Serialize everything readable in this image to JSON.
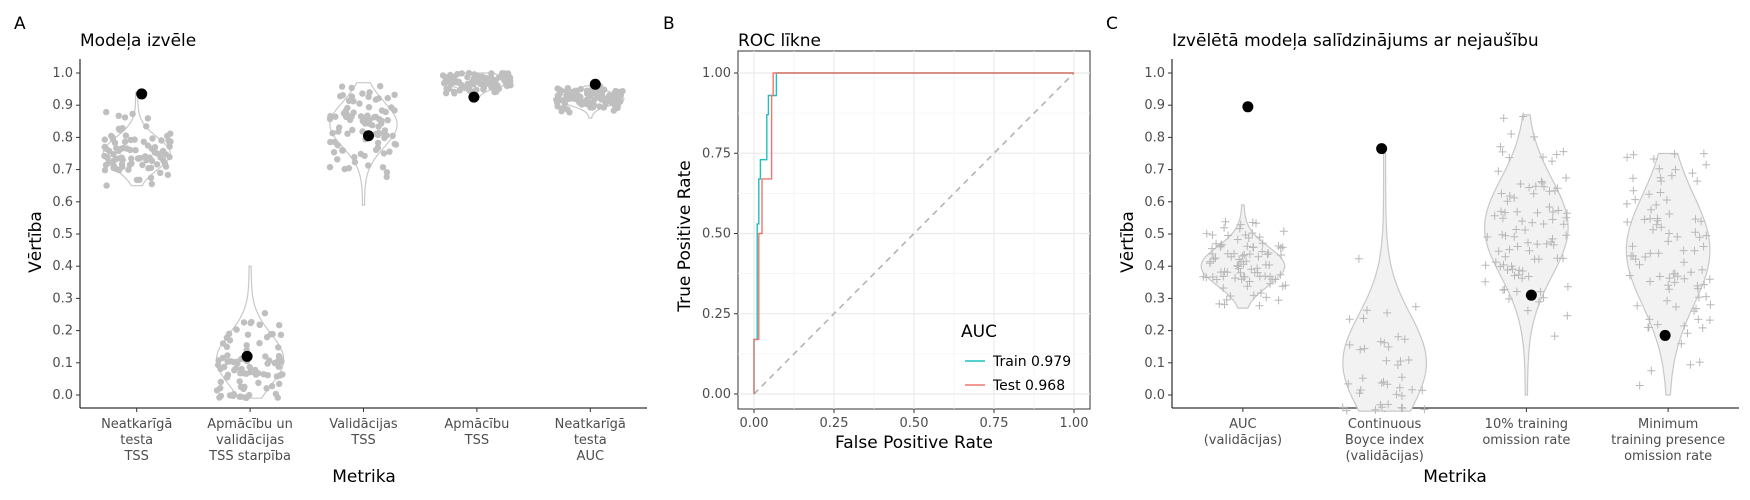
{
  "panels": {
    "A": {
      "tag": "A",
      "title": "Modeļa izvēle",
      "xlabel": "Metrika",
      "ylabel": "Vērtība"
    },
    "B": {
      "tag": "B",
      "title": "ROC līkne",
      "xlabel": "False Positive Rate",
      "ylabel": "True Positive Rate"
    },
    "C": {
      "tag": "C",
      "title": "Izvēlētā modeļa salīdzinājums ar nejaušību",
      "xlabel": "Metrika",
      "ylabel": "Vērtība"
    }
  },
  "colors": {
    "points": "#bfbfbf",
    "selected": "#000000",
    "train": "#1fbfc0",
    "test": "#f0766d",
    "diagonal": "#b3b3b3",
    "grid": "#ebebeb"
  },
  "chart_data": [
    {
      "type": "scatter",
      "title": "Modeļa izvēle",
      "xlabel": "Metrika",
      "ylabel": "Vērtība",
      "ylim": [
        0,
        1
      ],
      "yticks": [
        "0.0",
        "0.1",
        "0.2",
        "0.3",
        "0.4",
        "0.5",
        "0.6",
        "0.7",
        "0.8",
        "0.9",
        "1.0"
      ],
      "categories": [
        [
          "Neatkarīgā",
          "testa",
          "TSS"
        ],
        [
          "Apmācību un",
          "validācijas",
          "TSS starpība"
        ],
        [
          "Validācijas",
          "TSS"
        ],
        [
          "Apmācību",
          "TSS"
        ],
        [
          "Neatkarīgā",
          "testa",
          "AUC"
        ]
      ],
      "distributions": [
        {
          "center": 0.75,
          "spread": 0.05,
          "min": 0.65,
          "max": 0.94,
          "n": 90
        },
        {
          "center": 0.11,
          "spread": 0.08,
          "min": -0.01,
          "max": 0.4,
          "n": 90
        },
        {
          "center": 0.84,
          "spread": 0.07,
          "min": 0.59,
          "max": 0.97,
          "n": 90
        },
        {
          "center": 0.975,
          "spread": 0.02,
          "min": 0.92,
          "max": 1.0,
          "n": 90
        },
        {
          "center": 0.92,
          "spread": 0.02,
          "min": 0.86,
          "max": 0.96,
          "n": 90
        }
      ],
      "selected": [
        0.935,
        0.12,
        0.805,
        0.925,
        0.965
      ]
    },
    {
      "type": "line",
      "title": "ROC līkne",
      "xlabel": "False Positive Rate",
      "ylabel": "True Positive Rate",
      "xlim": [
        0,
        1
      ],
      "ylim": [
        0,
        1
      ],
      "xticks": [
        "0.00",
        "0.25",
        "0.50",
        "0.75",
        "1.00"
      ],
      "yticks": [
        "0.00",
        "0.25",
        "0.50",
        "0.75",
        "1.00"
      ],
      "legend": {
        "title": "AUC",
        "position": "bottom-right"
      },
      "series": [
        {
          "name": "Train 0.979",
          "points": [
            [
              0,
              0
            ],
            [
              0,
              0.17
            ],
            [
              0.01,
              0.17
            ],
            [
              0.01,
              0.53
            ],
            [
              0.015,
              0.53
            ],
            [
              0.015,
              0.67
            ],
            [
              0.02,
              0.67
            ],
            [
              0.02,
              0.73
            ],
            [
              0.04,
              0.73
            ],
            [
              0.04,
              0.87
            ],
            [
              0.045,
              0.87
            ],
            [
              0.045,
              0.93
            ],
            [
              0.07,
              0.93
            ],
            [
              0.07,
              1.0
            ],
            [
              1,
              1
            ]
          ]
        },
        {
          "name": "Test 0.968",
          "points": [
            [
              0,
              0
            ],
            [
              0,
              0.17
            ],
            [
              0.015,
              0.17
            ],
            [
              0.015,
              0.5
            ],
            [
              0.025,
              0.5
            ],
            [
              0.025,
              0.67
            ],
            [
              0.055,
              0.67
            ],
            [
              0.055,
              0.93
            ],
            [
              0.06,
              0.93
            ],
            [
              0.06,
              1.0
            ],
            [
              1,
              1
            ]
          ]
        }
      ]
    },
    {
      "type": "scatter",
      "title": "Izvēlētā modeļa salīdzinājums ar nejaušību",
      "xlabel": "Metrika",
      "ylabel": "Vērtība",
      "ylim": [
        0,
        1
      ],
      "yticks": [
        "0.0",
        "0.1",
        "0.2",
        "0.3",
        "0.4",
        "0.5",
        "0.6",
        "0.7",
        "0.8",
        "0.9",
        "1.0"
      ],
      "categories": [
        [
          "AUC",
          "(validācijas)"
        ],
        [
          "Continuous",
          "Boyce index",
          "(validācijas)"
        ],
        [
          "10% training",
          "omission rate"
        ],
        [
          "Minimum",
          "training presence",
          "omission rate"
        ]
      ],
      "distributions": [
        {
          "center": 0.4,
          "spread": 0.06,
          "min": 0.27,
          "max": 0.59,
          "n": 90
        },
        {
          "center": 0.1,
          "spread": 0.15,
          "min": -0.05,
          "max": 0.75,
          "n": 40
        },
        {
          "center": 0.52,
          "spread": 0.15,
          "min": 0.0,
          "max": 0.87,
          "n": 90
        },
        {
          "center": 0.45,
          "spread": 0.17,
          "min": 0.0,
          "max": 0.75,
          "n": 90
        }
      ],
      "selected": [
        0.895,
        0.765,
        0.31,
        0.185
      ]
    }
  ]
}
